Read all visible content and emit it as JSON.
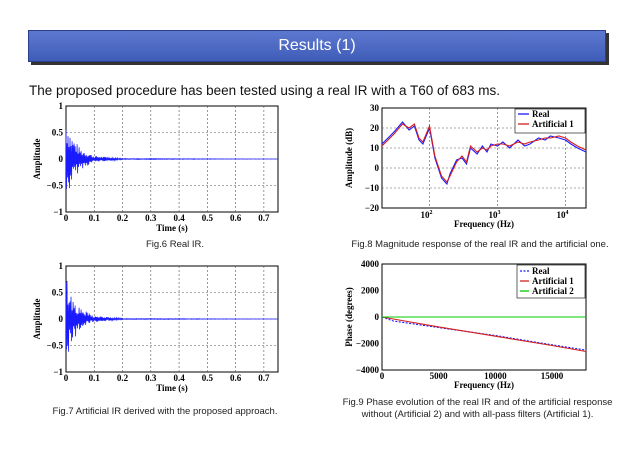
{
  "slide": {
    "title": "Results (1)",
    "intro": "The proposed procedure has been tested using a real IR with a T60 of 683 ms.",
    "colors": {
      "banner": "#4a67c4",
      "series_blue": "#1a1aff",
      "series_red": "#d42020",
      "series_green": "#00cc00"
    }
  },
  "chart_data": [
    {
      "id": "fig6",
      "type": "line",
      "caption": "Fig.6 Real IR.",
      "xlabel": "Time (s)",
      "ylabel": "Amplitude",
      "xlim": [
        0,
        0.75
      ],
      "ylim": [
        -1,
        1
      ],
      "xticks": [
        "0",
        "0.1",
        "0.2",
        "0.3",
        "0.4",
        "0.5",
        "0.6",
        "0.7"
      ],
      "yticks": [
        "−1",
        "−0.5",
        "0",
        "0.5",
        "1"
      ],
      "grid": true,
      "series": [
        {
          "color": "#1a1aff",
          "decay_time": [
            0,
            0.02,
            0.05,
            0.1,
            0.2,
            0.75
          ],
          "envelope": [
            0.85,
            0.45,
            0.2,
            0.06,
            0.01,
            0
          ]
        }
      ]
    },
    {
      "id": "fig7",
      "type": "line",
      "caption": "Fig.7 Artificial IR derived with the proposed approach.",
      "xlabel": "Time (s)",
      "ylabel": "Amplitude",
      "xlim": [
        0,
        0.75
      ],
      "ylim": [
        -1,
        1
      ],
      "xticks": [
        "0",
        "0.1",
        "0.2",
        "0.3",
        "0.4",
        "0.5",
        "0.6",
        "0.7"
      ],
      "yticks": [
        "−1",
        "−0.5",
        "0",
        "0.5",
        "1"
      ],
      "grid": true,
      "series": [
        {
          "color": "#1a1aff",
          "decay_time": [
            0,
            0.02,
            0.05,
            0.1,
            0.2,
            0.75
          ],
          "envelope": [
            0.85,
            0.45,
            0.2,
            0.06,
            0.01,
            0
          ]
        }
      ]
    },
    {
      "id": "fig8",
      "type": "line",
      "caption": "Fig.8 Magnitude response of the real IR and the artificial one.",
      "xlabel": "Frequency (Hz)",
      "ylabel": "Amplitude (dB)",
      "xscale": "log",
      "xlim": [
        20,
        20000
      ],
      "ylim": [
        -20,
        30
      ],
      "xticks": [
        100,
        1000,
        10000
      ],
      "yticks": [
        "−20",
        "−10",
        "0",
        "10",
        "20",
        "30"
      ],
      "grid": true,
      "legend": "top-right",
      "series": [
        {
          "name": "Real",
          "color": "#1a1aff",
          "x": [
            20,
            30,
            40,
            50,
            60,
            70,
            80,
            100,
            120,
            150,
            180,
            200,
            250,
            300,
            350,
            400,
            500,
            600,
            700,
            800,
            1000,
            1200,
            1500,
            2000,
            2500,
            3000,
            4000,
            5000,
            6000,
            8000,
            10000,
            12000,
            15000,
            20000
          ],
          "y": [
            12,
            18,
            23,
            19,
            21,
            14,
            12,
            20,
            5,
            -5,
            -8,
            -3,
            4,
            5,
            2,
            10,
            7,
            11,
            8,
            12,
            11,
            13,
            10,
            14,
            11,
            12,
            15,
            14,
            16,
            15,
            14,
            12,
            10,
            8
          ]
        },
        {
          "name": "Artificial 1",
          "color": "#d42020",
          "x": [
            20,
            30,
            40,
            50,
            60,
            70,
            80,
            100,
            120,
            150,
            180,
            200,
            250,
            300,
            350,
            400,
            500,
            600,
            700,
            800,
            1000,
            1200,
            1500,
            2000,
            2500,
            3000,
            4000,
            5000,
            6000,
            8000,
            10000,
            12000,
            15000,
            20000
          ],
          "y": [
            11,
            17,
            22,
            20,
            22,
            15,
            13,
            21,
            6,
            -4,
            -7,
            -4,
            3,
            6,
            3,
            11,
            8,
            10,
            9,
            11,
            12,
            12,
            11,
            13,
            12,
            13,
            14,
            15,
            15,
            16,
            15,
            13,
            11,
            9
          ]
        }
      ]
    },
    {
      "id": "fig9",
      "type": "line",
      "caption_lines": [
        "Fig.9 Phase evolution of the real IR and of the artificial response",
        "without (Artificial 2) and with all-pass filters (Artificial 1)."
      ],
      "xlabel": "Frequency (Hz)",
      "ylabel": "Phase (degrees)",
      "xlim": [
        0,
        18000
      ],
      "ylim": [
        -4000,
        4000
      ],
      "xticks": [
        "0",
        "5000",
        "10000",
        "15000"
      ],
      "yticks": [
        "−4000",
        "−2000",
        "0",
        "2000",
        "4000"
      ],
      "grid": false,
      "legend": "top-right",
      "series": [
        {
          "name": "Real",
          "color": "#1a1aff",
          "dash": true,
          "x": [
            0,
            1000,
            5000,
            10000,
            15000,
            18000
          ],
          "y": [
            0,
            -300,
            -800,
            -1400,
            -2100,
            -2500
          ]
        },
        {
          "name": "Artificial 1",
          "color": "#d42020",
          "x": [
            0,
            1000,
            5000,
            10000,
            15000,
            18000
          ],
          "y": [
            0,
            -150,
            -750,
            -1450,
            -2150,
            -2600
          ]
        },
        {
          "name": "Artificial 2",
          "color": "#00cc00",
          "x": [
            0,
            18000
          ],
          "y": [
            0,
            0
          ]
        }
      ]
    }
  ]
}
